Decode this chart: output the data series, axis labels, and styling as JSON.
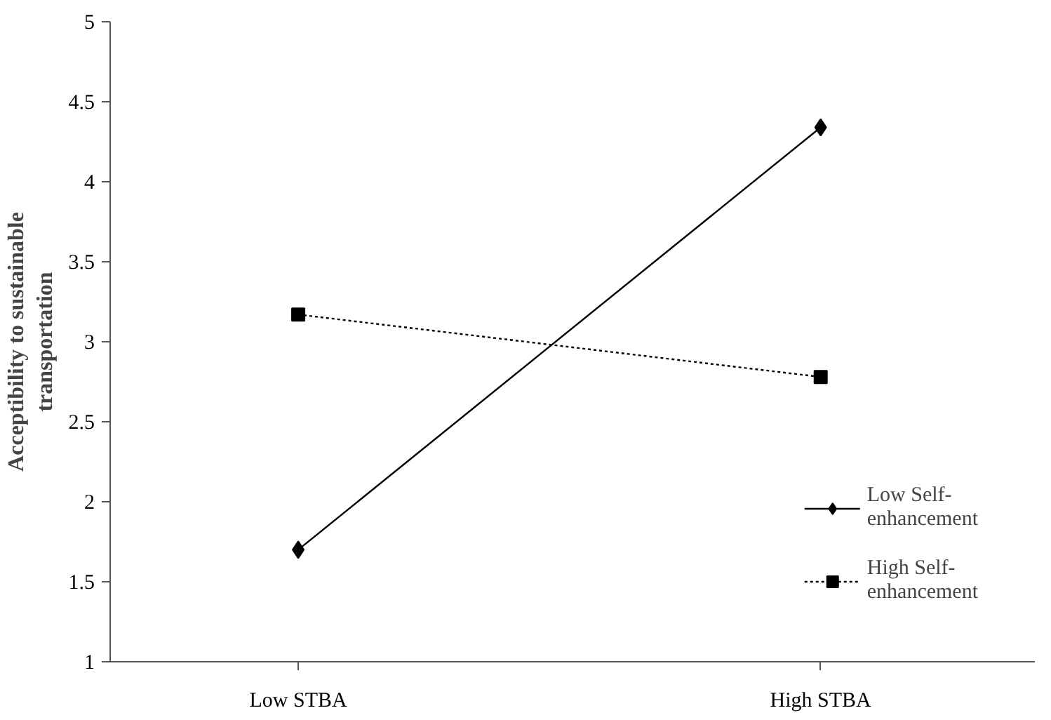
{
  "chart_data": {
    "type": "line",
    "ylabel": "Acceptibility to sustainable transportation",
    "categories": [
      "Low STBA",
      "High STBA"
    ],
    "series": [
      {
        "name": "Low Self-enhancement",
        "color": "#000000",
        "values": [
          1.7,
          4.34
        ],
        "marker": "diamond",
        "line_style": "solid"
      },
      {
        "name": "High Self-enhancement",
        "color": "#000000",
        "values": [
          3.17,
          2.78
        ],
        "marker": "square",
        "line_style": "dotted"
      }
    ],
    "ylim": [
      1,
      5
    ],
    "yticks": [
      1,
      1.5,
      2,
      2.5,
      3,
      3.5,
      4,
      4.5,
      5
    ],
    "grid": false,
    "legend": "bottom right"
  }
}
